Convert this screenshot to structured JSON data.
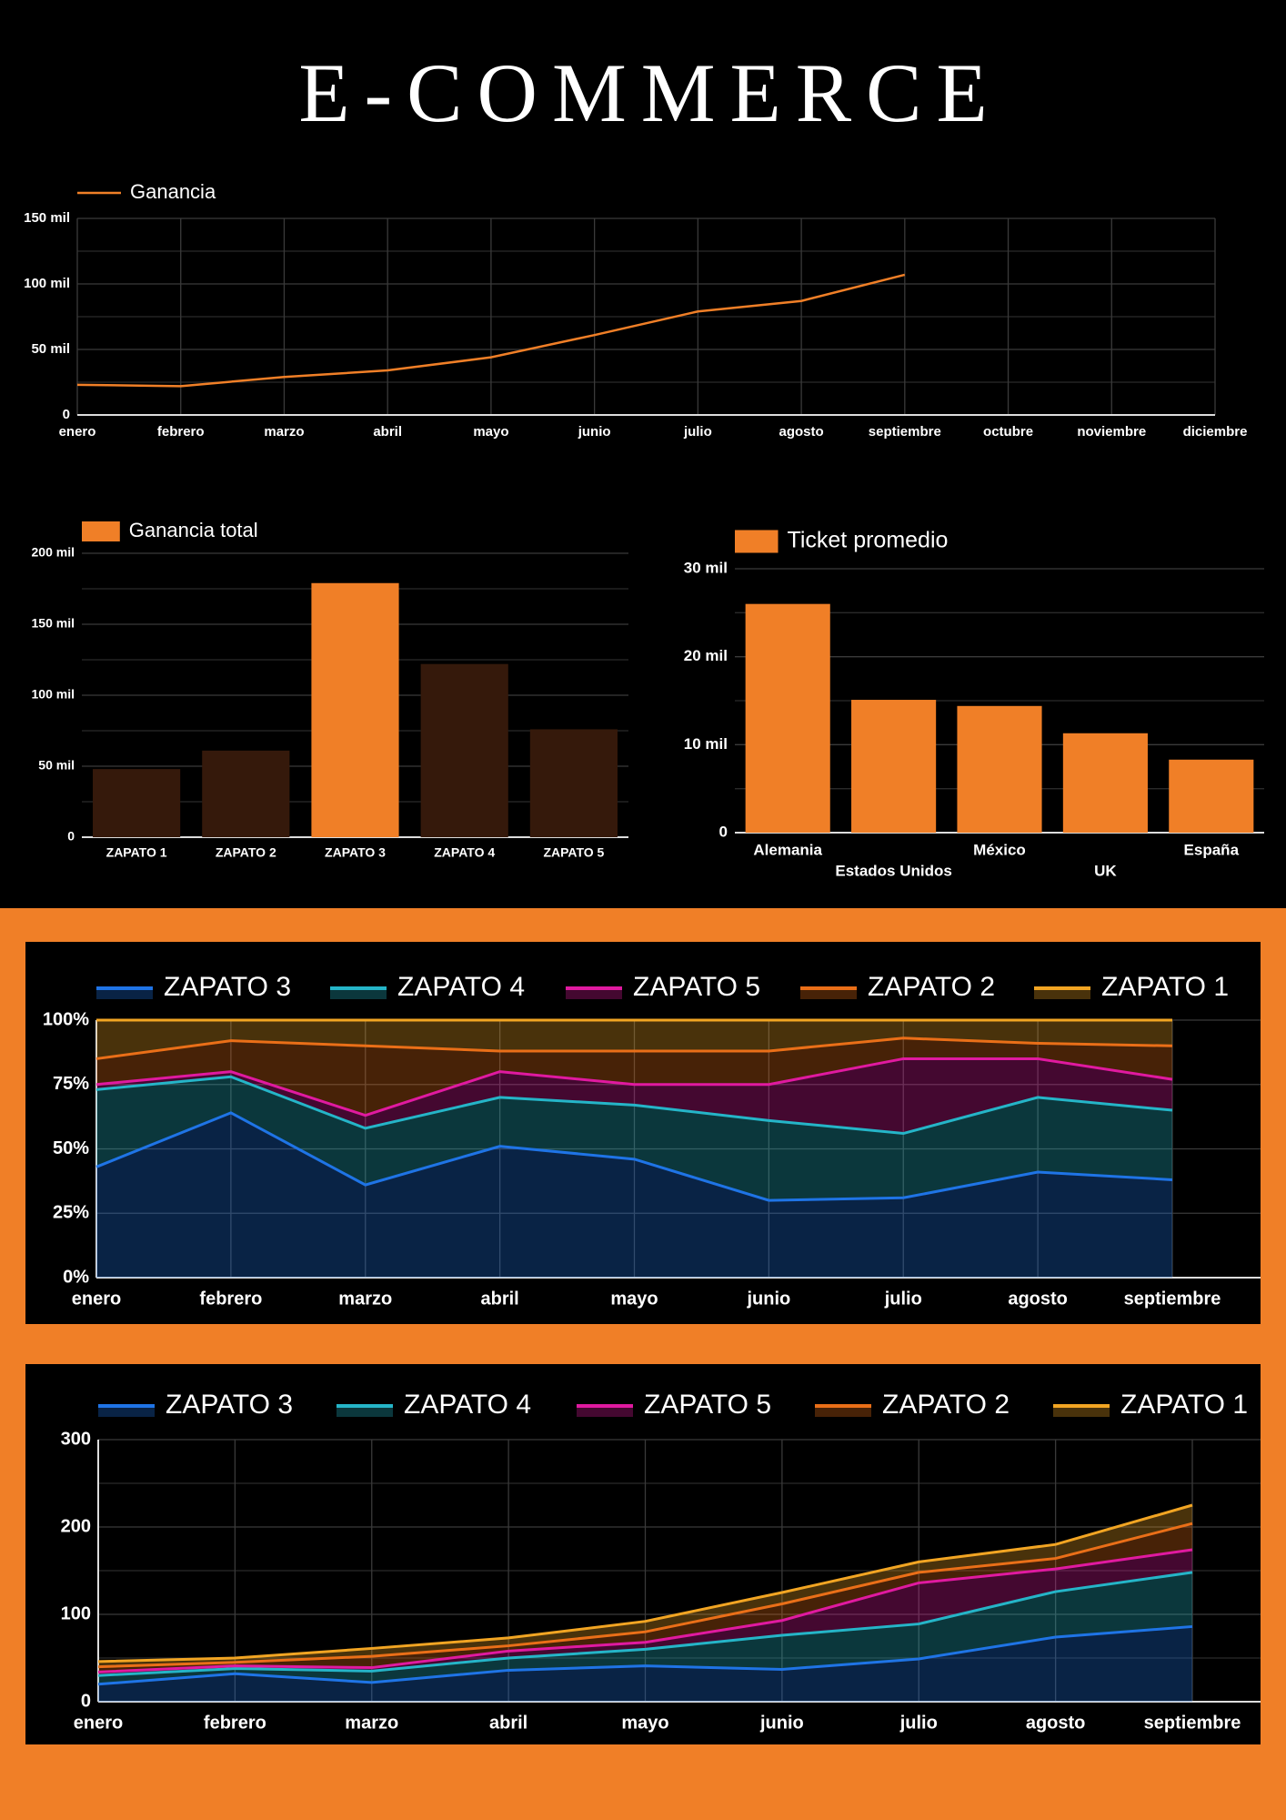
{
  "title": "E-COMMERCE",
  "chart_data": [
    {
      "type": "line",
      "categories": [
        "enero",
        "febrero",
        "marzo",
        "abril",
        "mayo",
        "junio",
        "julio",
        "agosto",
        "septiembre",
        "octubre",
        "noviembre",
        "diciembre"
      ],
      "series": [
        {
          "name": "Ganancia",
          "color": "#f07f27",
          "values": [
            23,
            22,
            29,
            34,
            44,
            61,
            79,
            87,
            107,
            null,
            null,
            null
          ]
        }
      ],
      "ylim": [
        0,
        150
      ],
      "yticks": [
        0,
        {
          "value": 50,
          "label": "50 mil"
        },
        {
          "value": 100,
          "label": "100 mil"
        },
        {
          "value": 150,
          "label": "150 mil"
        }
      ],
      "grid": true,
      "minor_grid": true,
      "x_grid": true
    },
    {
      "type": "bar",
      "categories": [
        "ZAPATO 1",
        "ZAPATO 2",
        "ZAPATO 3",
        "ZAPATO 4",
        "ZAPATO 5"
      ],
      "series": [
        {
          "name": "Ganancia total",
          "color": "#f07f27",
          "values": [
            48,
            61,
            179,
            122,
            76
          ],
          "colors": [
            "#35190b",
            "#35190b",
            "#f07f27",
            "#35190b",
            "#35190b"
          ]
        }
      ],
      "ylim": [
        0,
        200
      ],
      "yticks": [
        0,
        {
          "value": 50,
          "label": "50 mil"
        },
        {
          "value": 100,
          "label": "100 mil"
        },
        {
          "value": 150,
          "label": "150 mil"
        },
        {
          "value": 200,
          "label": "200 mil"
        }
      ],
      "grid": true,
      "minor_grid": true
    },
    {
      "type": "bar",
      "categories": [
        "Alemania",
        "Estados Unidos",
        "México",
        "UK",
        "España"
      ],
      "series": [
        {
          "name": "Ticket promedio",
          "color": "#f07f27",
          "values": [
            26,
            15.1,
            14.4,
            11.3,
            8.3
          ]
        }
      ],
      "ylim": [
        0,
        30
      ],
      "yticks": [
        0,
        {
          "value": 10,
          "label": "10 mil"
        },
        {
          "value": 20,
          "label": "20 mil"
        },
        {
          "value": 30,
          "label": "30 mil"
        }
      ],
      "grid": true,
      "minor_grid": true,
      "staggered_labels": true
    },
    {
      "type": "area",
      "stacked": true,
      "categories": [
        "enero",
        "febrero",
        "marzo",
        "abril",
        "mayo",
        "junio",
        "julio",
        "agosto",
        "septiembre"
      ],
      "series": [
        {
          "name": "ZAPATO 3",
          "color": "#1f74e6",
          "values": [
            43,
            64,
            36,
            51,
            46,
            30,
            31,
            41,
            38
          ]
        },
        {
          "name": "ZAPATO 4",
          "color": "#25b5c8",
          "values": [
            30,
            14,
            22,
            19,
            21,
            31,
            25,
            29,
            27
          ]
        },
        {
          "name": "ZAPATO 5",
          "color": "#e01aa0",
          "values": [
            2,
            2,
            5,
            10,
            8,
            14,
            29,
            15,
            12
          ]
        },
        {
          "name": "ZAPATO 2",
          "color": "#ea6f18",
          "values": [
            10,
            12,
            27,
            8,
            13,
            13,
            8,
            6,
            13
          ]
        },
        {
          "name": "ZAPATO 1",
          "color": "#f2a523",
          "values": [
            15,
            8,
            10,
            12,
            12,
            12,
            7,
            9,
            10
          ]
        }
      ],
      "ylim": [
        0,
        100
      ],
      "yticks": [
        {
          "value": 0,
          "label": "0%"
        },
        {
          "value": 25,
          "label": "25%"
        },
        {
          "value": 50,
          "label": "50%"
        },
        {
          "value": 75,
          "label": "75%"
        },
        {
          "value": 100,
          "label": "100%"
        }
      ],
      "grid": true,
      "x_grid": true
    },
    {
      "type": "area",
      "stacked": true,
      "categories": [
        "enero",
        "febrero",
        "marzo",
        "abril",
        "mayo",
        "junio",
        "julio",
        "agosto",
        "septiembre"
      ],
      "series": [
        {
          "name": "ZAPATO 3",
          "color": "#1f74e6",
          "values": [
            20,
            32,
            22,
            36,
            41,
            37,
            49,
            74,
            86
          ]
        },
        {
          "name": "ZAPATO 4",
          "color": "#25b5c8",
          "values": [
            10,
            6,
            13,
            14,
            19,
            39,
            40,
            52,
            62
          ]
        },
        {
          "name": "ZAPATO 5",
          "color": "#e01aa0",
          "values": [
            4,
            3,
            4,
            8,
            8,
            17,
            47,
            26,
            26
          ]
        },
        {
          "name": "ZAPATO 2",
          "color": "#ea6f18",
          "values": [
            6,
            4,
            13,
            6,
            12,
            19,
            12,
            12,
            30
          ]
        },
        {
          "name": "ZAPATO 1",
          "color": "#f2a523",
          "values": [
            6,
            5,
            9,
            9,
            12,
            13,
            12,
            16,
            21
          ]
        }
      ],
      "ylim": [
        0,
        300
      ],
      "yticks": [
        0,
        100,
        200,
        300
      ],
      "grid": true,
      "minor_grid": true,
      "x_grid": true
    }
  ]
}
